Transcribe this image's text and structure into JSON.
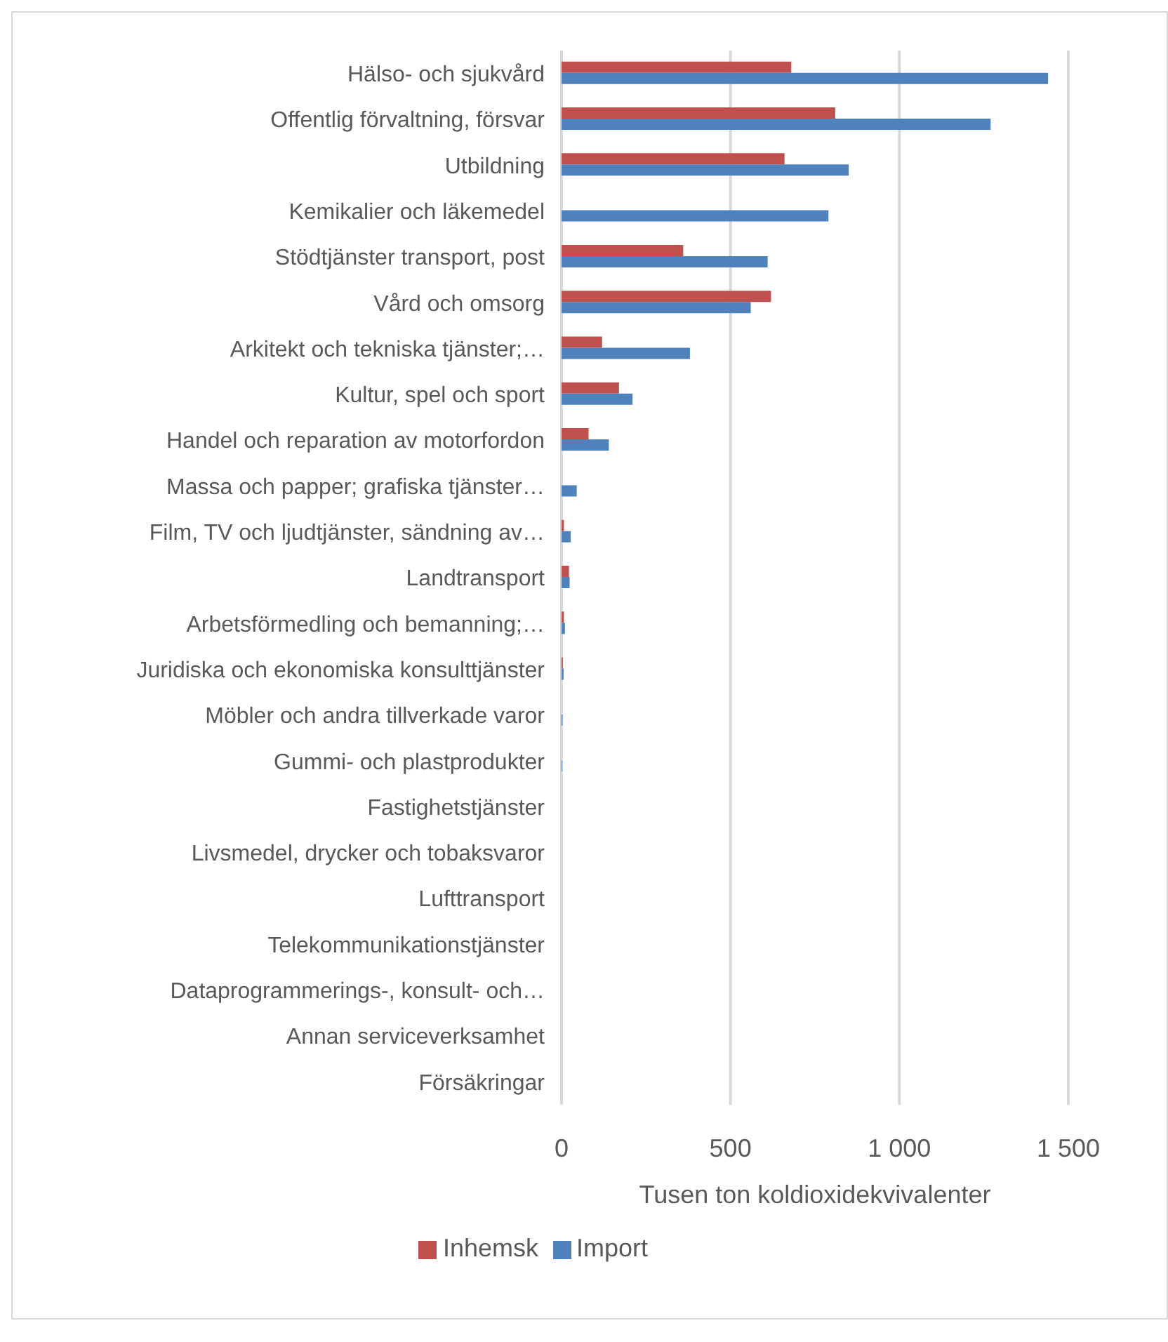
{
  "chart_data": {
    "type": "bar",
    "orientation": "horizontal",
    "xlabel": "Tusen ton koldioxidekvivalenter",
    "categories": [
      "Hälso- och sjukvård",
      "Offentlig förvaltning, försvar",
      "Utbildning",
      "Kemikalier och läkemedel",
      "Stödtjänster transport, post",
      "Vård och omsorg",
      "Arkitekt och tekniska tjänster;…",
      "Kultur, spel och sport",
      "Handel och reparation av motorfordon",
      "Massa och papper; grafiska tjänster…",
      "Film, TV och ljudtjänster, sändning av…",
      "Landtransport",
      "Arbetsförmedling och bemanning;…",
      "Juridiska och ekonomiska konsulttjänster",
      "Möbler och andra tillverkade varor",
      "Gummi- och plastprodukter",
      "Fastighetstjänster",
      "Livsmedel, drycker och tobaksvaror",
      "Lufttransport",
      "Telekommunikationstjänster",
      "Dataprogrammerings-, konsult- och…",
      "Annan serviceverksamhet",
      "Försäkringar"
    ],
    "series": [
      {
        "name": "Inhemsk",
        "color": "#c0504d",
        "values": [
          680,
          810,
          660,
          0,
          360,
          620,
          120,
          170,
          80,
          0,
          7,
          22,
          7,
          4,
          0,
          0,
          0,
          0,
          0,
          0,
          0,
          0,
          0
        ]
      },
      {
        "name": "Import",
        "color": "#4f81bd",
        "values": [
          1440,
          1270,
          850,
          790,
          610,
          560,
          380,
          210,
          140,
          45,
          27,
          24,
          10,
          6,
          3,
          2,
          null,
          null,
          null,
          0,
          0,
          0,
          0
        ]
      }
    ],
    "xlim": [
      0,
      1500
    ],
    "xticks": [
      0,
      500,
      {
        "value": 1000,
        "label": "1 000"
      },
      {
        "value": 1500,
        "label": "1 500"
      }
    ],
    "grid": "x",
    "legend": "bottom"
  }
}
